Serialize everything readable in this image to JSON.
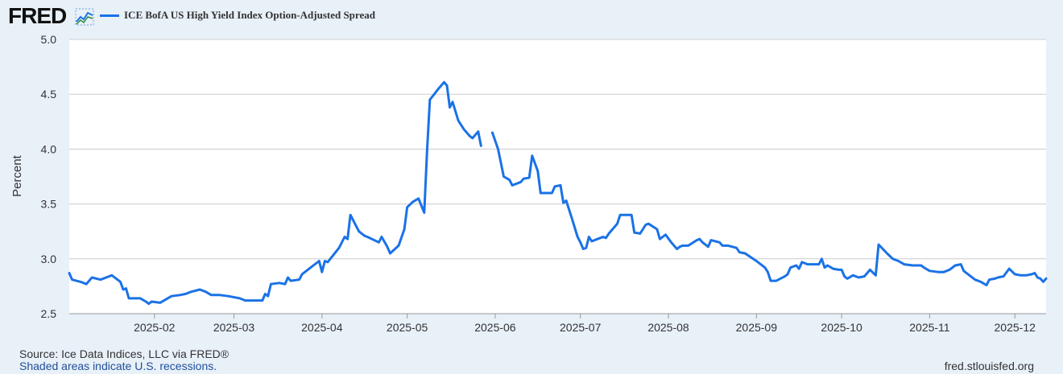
{
  "header": {
    "logo_text": "FRED",
    "logo_icon": "line-chart-icon"
  },
  "footer": {
    "source": "Source: Ice Data Indices, LLC via FRED®",
    "recession_note": "Shaded areas indicate U.S. recessions.",
    "site": "fred.stlouisfed.org"
  },
  "colors": {
    "series": "#1a72e6",
    "background": "#e8f0f8",
    "plot_background": "#ffffff",
    "grid": "#cccccc"
  },
  "chart_data": {
    "type": "line",
    "title": "",
    "xlabel": "",
    "ylabel": "Percent",
    "ylim": [
      2.5,
      5.0
    ],
    "yticks": [
      "2.5",
      "3.0",
      "3.5",
      "4.0",
      "4.5",
      "5.0"
    ],
    "xlim": [
      "2025-01-02",
      "2025-12-12"
    ],
    "xticks": [
      {
        "date": "2025-02-01",
        "label": "2025-02"
      },
      {
        "date": "2025-03-01",
        "label": "2025-03"
      },
      {
        "date": "2025-04-01",
        "label": "2025-04"
      },
      {
        "date": "2025-05-01",
        "label": "2025-05"
      },
      {
        "date": "2025-06-01",
        "label": "2025-06"
      },
      {
        "date": "2025-07-01",
        "label": "2025-07"
      },
      {
        "date": "2025-08-01",
        "label": "2025-08"
      },
      {
        "date": "2025-09-01",
        "label": "2025-09"
      },
      {
        "date": "2025-10-01",
        "label": "2025-10"
      },
      {
        "date": "2025-11-01",
        "label": "2025-11"
      },
      {
        "date": "2025-12-01",
        "label": "2025-12"
      }
    ],
    "grid": "horizontal",
    "legend_position": "top-left",
    "series": [
      {
        "name": "ICE BofA US High Yield Index Option-Adjusted Spread",
        "color": "#1a72e6",
        "segments": [
          [
            [
              "2025-01-02",
              2.87
            ],
            [
              "2025-01-03",
              2.81
            ],
            [
              "2025-01-06",
              2.79
            ],
            [
              "2025-01-08",
              2.77
            ],
            [
              "2025-01-10",
              2.83
            ],
            [
              "2025-01-13",
              2.81
            ],
            [
              "2025-01-16",
              2.84
            ],
            [
              "2025-01-17",
              2.85
            ],
            [
              "2025-01-20",
              2.79
            ],
            [
              "2025-01-21",
              2.72
            ],
            [
              "2025-01-22",
              2.73
            ],
            [
              "2025-01-23",
              2.64
            ],
            [
              "2025-01-27",
              2.64
            ],
            [
              "2025-01-29",
              2.61
            ],
            [
              "2025-01-30",
              2.59
            ],
            [
              "2025-01-31",
              2.61
            ],
            [
              "2025-02-03",
              2.6
            ],
            [
              "2025-02-05",
              2.63
            ],
            [
              "2025-02-07",
              2.66
            ],
            [
              "2025-02-10",
              2.67
            ],
            [
              "2025-02-12",
              2.68
            ],
            [
              "2025-02-14",
              2.7
            ],
            [
              "2025-02-17",
              2.72
            ],
            [
              "2025-02-19",
              2.7
            ],
            [
              "2025-02-21",
              2.67
            ],
            [
              "2025-02-24",
              2.67
            ],
            [
              "2025-02-27",
              2.66
            ],
            [
              "2025-03-03",
              2.64
            ],
            [
              "2025-03-05",
              2.62
            ],
            [
              "2025-03-07",
              2.62
            ],
            [
              "2025-03-11",
              2.62
            ],
            [
              "2025-03-12",
              2.68
            ],
            [
              "2025-03-13",
              2.66
            ],
            [
              "2025-03-14",
              2.77
            ],
            [
              "2025-03-17",
              2.78
            ],
            [
              "2025-03-19",
              2.77
            ],
            [
              "2025-03-20",
              2.83
            ],
            [
              "2025-03-21",
              2.8
            ],
            [
              "2025-03-24",
              2.81
            ],
            [
              "2025-03-25",
              2.86
            ],
            [
              "2025-03-27",
              2.9
            ],
            [
              "2025-03-28",
              2.92
            ],
            [
              "2025-03-31",
              2.98
            ],
            [
              "2025-04-01",
              2.88
            ],
            [
              "2025-04-02",
              2.98
            ],
            [
              "2025-04-03",
              2.97
            ],
            [
              "2025-04-07",
              3.1
            ],
            [
              "2025-04-09",
              3.2
            ],
            [
              "2025-04-10",
              3.18
            ],
            [
              "2025-04-11",
              3.4
            ],
            [
              "2025-04-14",
              3.25
            ],
            [
              "2025-04-16",
              3.21
            ],
            [
              "2025-04-17",
              3.2
            ],
            [
              "2025-04-21",
              3.15
            ],
            [
              "2025-04-22",
              3.2
            ],
            [
              "2025-04-24",
              3.11
            ],
            [
              "2025-04-25",
              3.05
            ],
            [
              "2025-04-28",
              3.12
            ],
            [
              "2025-04-30",
              3.27
            ],
            [
              "2025-05-01",
              3.47
            ],
            [
              "2025-05-03",
              3.52
            ],
            [
              "2025-05-05",
              3.55
            ],
            [
              "2025-05-07",
              3.42
            ],
            [
              "2025-05-08",
              3.98
            ],
            [
              "2025-05-09",
              4.45
            ],
            [
              "2025-05-12",
              4.55
            ],
            [
              "2025-05-14",
              4.61
            ],
            [
              "2025-05-15",
              4.58
            ],
            [
              "2025-05-16",
              4.38
            ],
            [
              "2025-05-17",
              4.43
            ],
            [
              "2025-05-19",
              4.26
            ],
            [
              "2025-05-21",
              4.18
            ],
            [
              "2025-05-23",
              4.12
            ],
            [
              "2025-05-24",
              4.1
            ],
            [
              "2025-05-26",
              4.16
            ],
            [
              "2025-05-27",
              4.03
            ]
          ],
          [
            [
              "2025-05-31",
              4.15
            ],
            [
              "2025-06-02",
              4.0
            ],
            [
              "2025-06-04",
              3.75
            ],
            [
              "2025-06-06",
              3.72
            ],
            [
              "2025-06-07",
              3.67
            ],
            [
              "2025-06-10",
              3.7
            ],
            [
              "2025-06-11",
              3.73
            ],
            [
              "2025-06-13",
              3.74
            ],
            [
              "2025-06-14",
              3.94
            ],
            [
              "2025-06-16",
              3.8
            ],
            [
              "2025-06-17",
              3.6
            ],
            [
              "2025-06-19",
              3.6
            ],
            [
              "2025-06-21",
              3.6
            ],
            [
              "2025-06-22",
              3.66
            ],
            [
              "2025-06-24",
              3.67
            ],
            [
              "2025-06-25",
              3.51
            ],
            [
              "2025-06-26",
              3.53
            ],
            [
              "2025-06-28",
              3.37
            ],
            [
              "2025-06-30",
              3.2
            ],
            [
              "2025-07-01",
              3.15
            ],
            [
              "2025-07-02",
              3.09
            ],
            [
              "2025-07-03",
              3.1
            ],
            [
              "2025-07-04",
              3.2
            ],
            [
              "2025-07-05",
              3.16
            ],
            [
              "2025-07-07",
              3.18
            ],
            [
              "2025-07-09",
              3.2
            ],
            [
              "2025-07-10",
              3.19
            ],
            [
              "2025-07-11",
              3.23
            ],
            [
              "2025-07-14",
              3.32
            ],
            [
              "2025-07-15",
              3.4
            ],
            [
              "2025-07-17",
              3.4
            ],
            [
              "2025-07-19",
              3.4
            ],
            [
              "2025-07-20",
              3.24
            ],
            [
              "2025-07-22",
              3.23
            ],
            [
              "2025-07-24",
              3.31
            ],
            [
              "2025-07-25",
              3.32
            ],
            [
              "2025-07-28",
              3.27
            ],
            [
              "2025-07-29",
              3.18
            ],
            [
              "2025-07-31",
              3.22
            ],
            [
              "2025-08-02",
              3.15
            ],
            [
              "2025-08-04",
              3.09
            ],
            [
              "2025-08-05",
              3.11
            ],
            [
              "2025-08-06",
              3.12
            ],
            [
              "2025-08-07",
              3.12
            ],
            [
              "2025-08-08",
              3.12
            ],
            [
              "2025-08-11",
              3.17
            ],
            [
              "2025-08-12",
              3.18
            ],
            [
              "2025-08-13",
              3.15
            ],
            [
              "2025-08-15",
              3.11
            ],
            [
              "2025-08-16",
              3.17
            ],
            [
              "2025-08-19",
              3.15
            ],
            [
              "2025-08-20",
              3.12
            ],
            [
              "2025-08-22",
              3.12
            ],
            [
              "2025-08-25",
              3.1
            ],
            [
              "2025-08-26",
              3.06
            ],
            [
              "2025-08-28",
              3.05
            ],
            [
              "2025-09-01",
              2.98
            ],
            [
              "2025-09-04",
              2.92
            ],
            [
              "2025-09-05",
              2.88
            ],
            [
              "2025-09-06",
              2.8
            ],
            [
              "2025-09-08",
              2.8
            ],
            [
              "2025-09-11",
              2.84
            ],
            [
              "2025-09-12",
              2.86
            ],
            [
              "2025-09-13",
              2.92
            ],
            [
              "2025-09-15",
              2.94
            ],
            [
              "2025-09-16",
              2.91
            ],
            [
              "2025-09-17",
              2.97
            ],
            [
              "2025-09-19",
              2.95
            ],
            [
              "2025-09-22",
              2.95
            ],
            [
              "2025-09-23",
              2.95
            ],
            [
              "2025-09-24",
              3.0
            ],
            [
              "2025-09-25",
              2.92
            ],
            [
              "2025-09-26",
              2.94
            ],
            [
              "2025-09-28",
              2.91
            ],
            [
              "2025-09-30",
              2.9
            ],
            [
              "2025-10-01",
              2.9
            ],
            [
              "2025-10-02",
              2.84
            ],
            [
              "2025-10-03",
              2.82
            ],
            [
              "2025-10-05",
              2.85
            ],
            [
              "2025-10-07",
              2.83
            ],
            [
              "2025-10-09",
              2.84
            ],
            [
              "2025-10-11",
              2.9
            ],
            [
              "2025-10-13",
              2.85
            ],
            [
              "2025-10-14",
              3.13
            ],
            [
              "2025-10-17",
              3.05
            ],
            [
              "2025-10-19",
              3.0
            ],
            [
              "2025-10-21",
              2.98
            ],
            [
              "2025-10-23",
              2.95
            ],
            [
              "2025-10-26",
              2.94
            ],
            [
              "2025-10-29",
              2.94
            ],
            [
              "2025-10-30",
              2.92
            ],
            [
              "2025-11-01",
              2.89
            ],
            [
              "2025-11-04",
              2.88
            ],
            [
              "2025-11-06",
              2.88
            ],
            [
              "2025-11-08",
              2.9
            ],
            [
              "2025-11-10",
              2.94
            ],
            [
              "2025-11-12",
              2.95
            ],
            [
              "2025-11-13",
              2.89
            ],
            [
              "2025-11-15",
              2.85
            ],
            [
              "2025-11-17",
              2.81
            ],
            [
              "2025-11-19",
              2.79
            ],
            [
              "2025-11-21",
              2.76
            ],
            [
              "2025-11-22",
              2.81
            ],
            [
              "2025-11-24",
              2.82
            ],
            [
              "2025-11-25",
              2.83
            ],
            [
              "2025-11-27",
              2.84
            ],
            [
              "2025-11-29",
              2.91
            ],
            [
              "2025-12-01",
              2.86
            ],
            [
              "2025-12-03",
              2.85
            ],
            [
              "2025-12-05",
              2.85
            ],
            [
              "2025-12-07",
              2.86
            ],
            [
              "2025-12-08",
              2.87
            ],
            [
              "2025-12-09",
              2.83
            ],
            [
              "2025-12-10",
              2.82
            ],
            [
              "2025-12-11",
              2.79
            ],
            [
              "2025-12-12",
              2.82
            ]
          ]
        ]
      }
    ]
  }
}
